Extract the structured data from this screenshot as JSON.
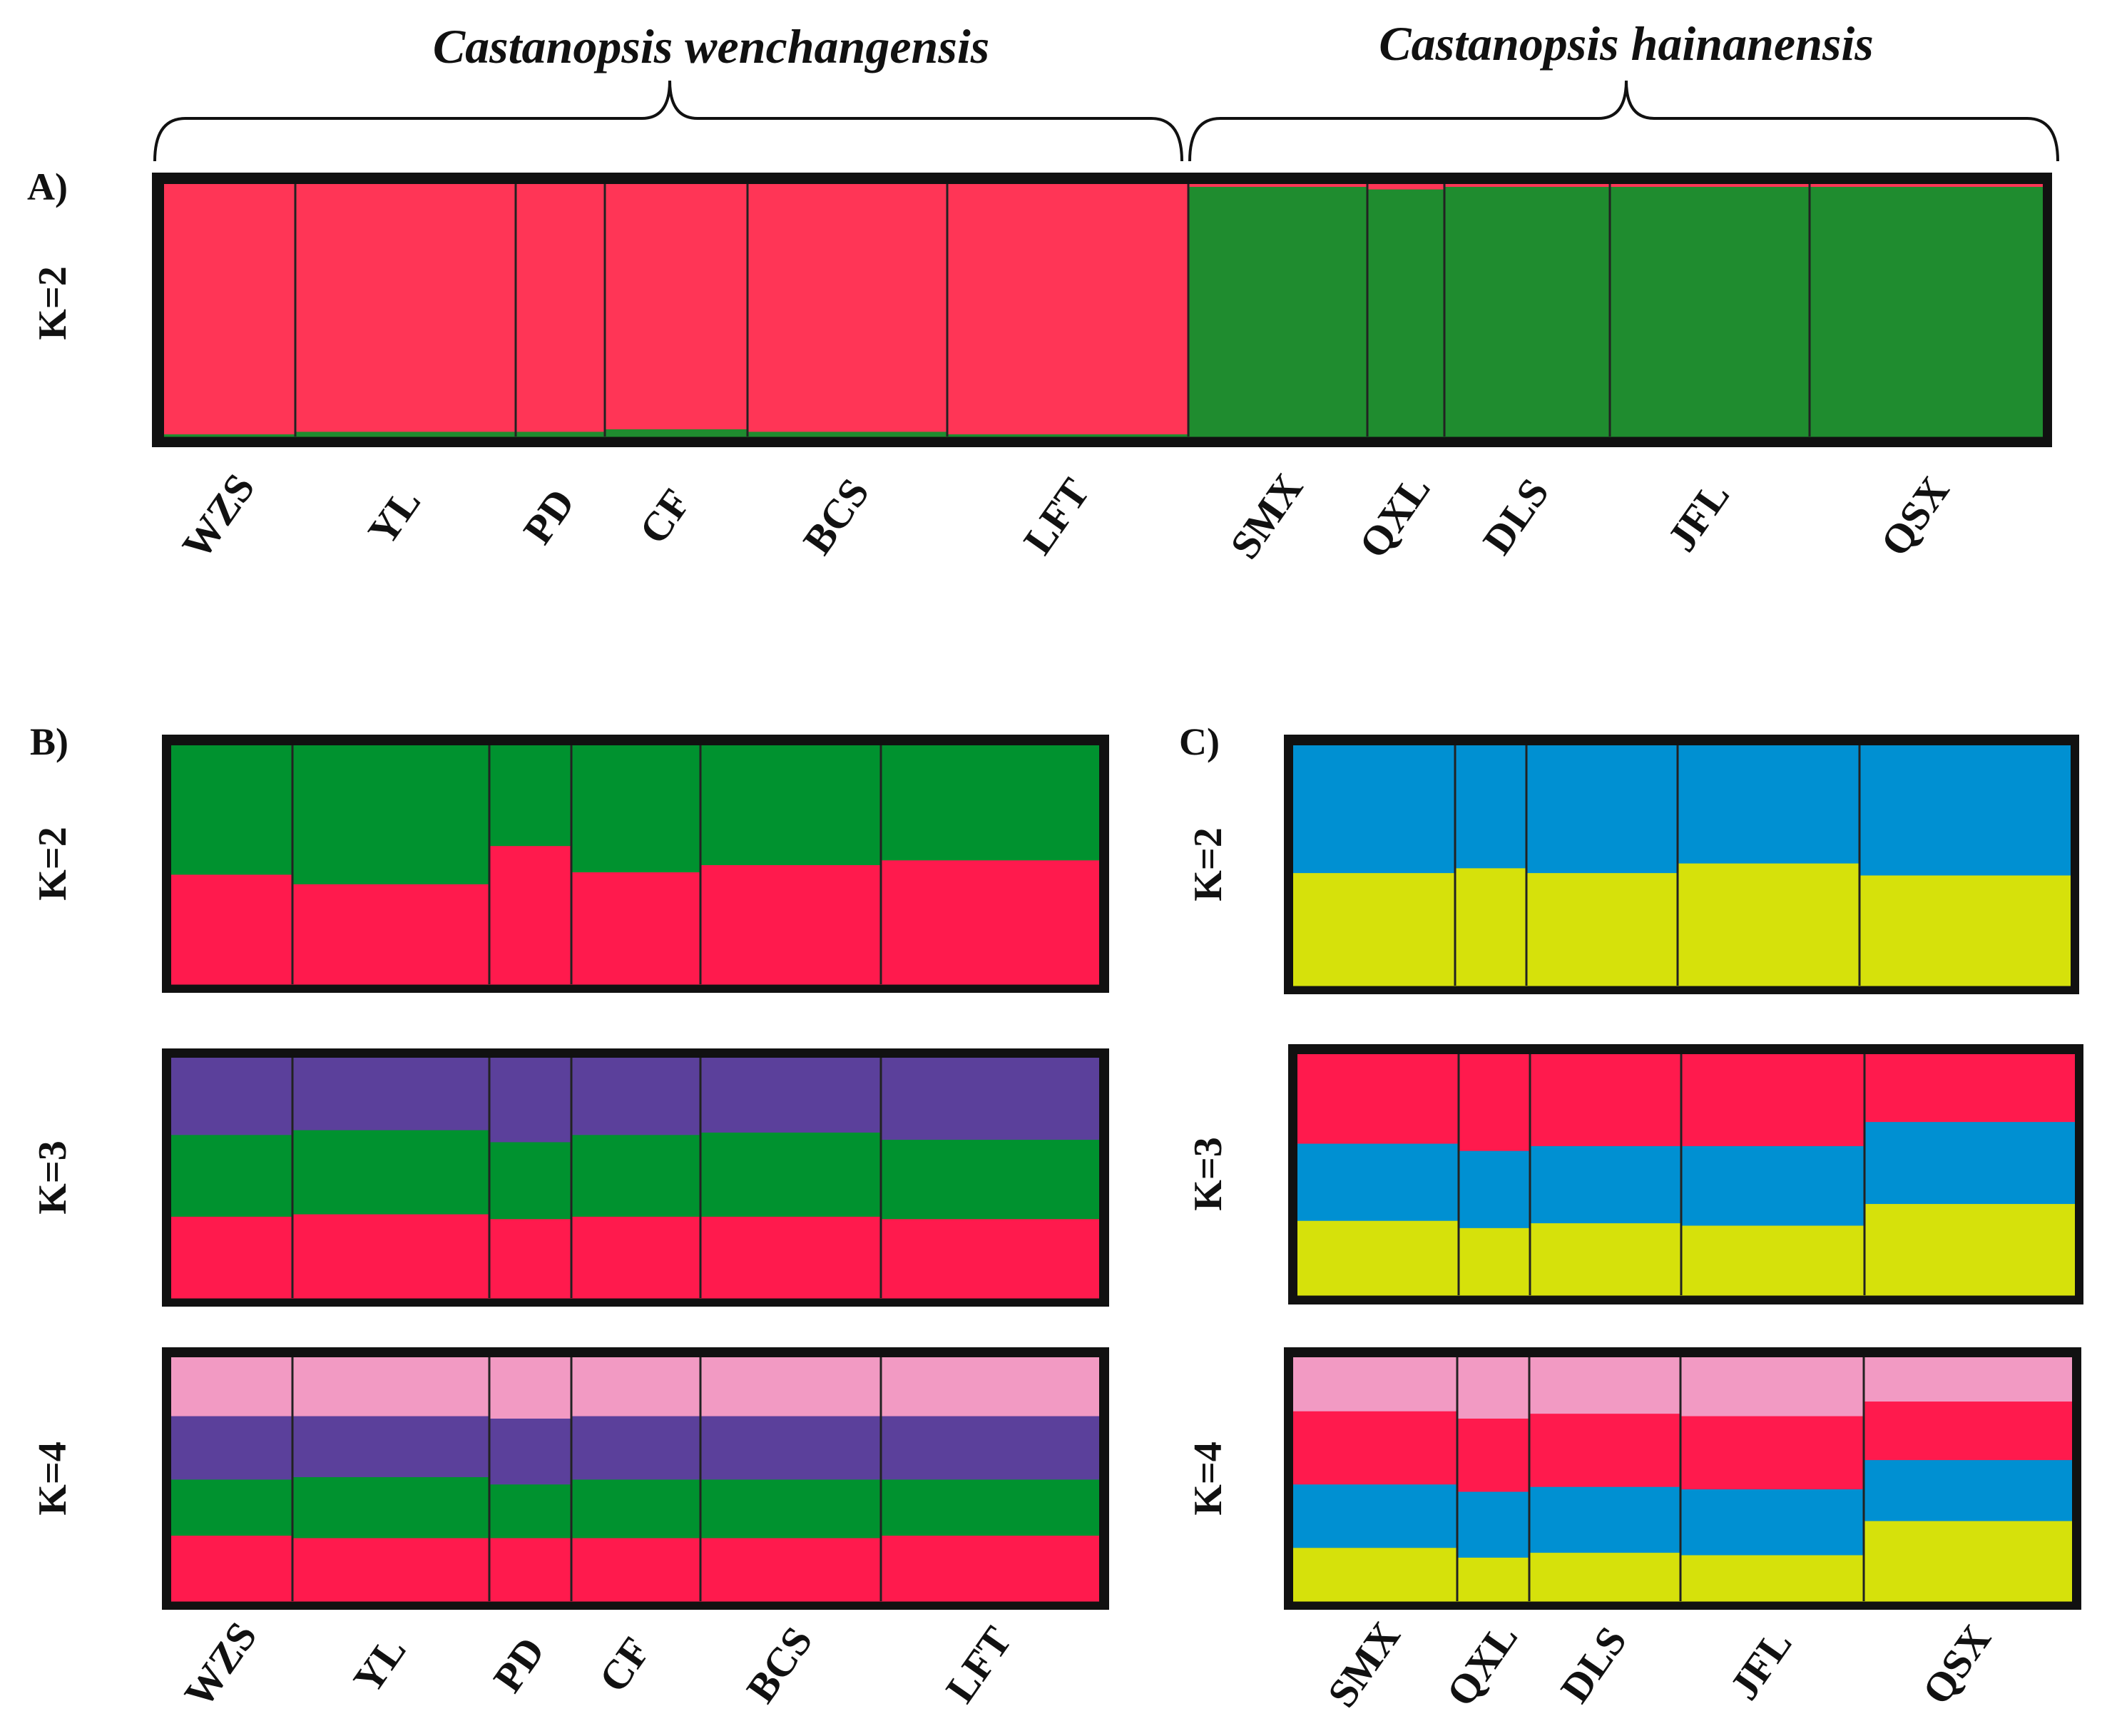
{
  "titles": {
    "left_species": "Castanopsis wenchangensis",
    "right_species": "Castanopsis hainanensis"
  },
  "colors": {
    "red_A": "#ff3556",
    "green_A": "#1f8c2f",
    "red": "#ff1a4d",
    "green": "#00922f",
    "purple": "#5b409b",
    "pink": "#f29ac3",
    "blue": "#0090d2",
    "yellow": "#d6e10b",
    "frame": "#111111"
  },
  "chart_data": [
    {
      "type": "bar",
      "subtype": "stacked-admixture",
      "panel_label": "A)",
      "k_label": "K=2",
      "categories": [
        "WZS",
        "YL",
        "PD",
        "CF",
        "BCS",
        "LFT",
        "SMX",
        "QXL",
        "DLS",
        "JFL",
        "QSX"
      ],
      "ylim": [
        0,
        1
      ],
      "series": [
        {
          "color_key": "green_A",
          "values": [
            0.01,
            0.02,
            0.02,
            0.03,
            0.02,
            0.01,
            0.99,
            0.98,
            0.99,
            0.99,
            0.99
          ]
        },
        {
          "color_key": "red_A",
          "values": [
            0.99,
            0.98,
            0.98,
            0.97,
            0.98,
            0.99,
            0.01,
            0.02,
            0.01,
            0.01,
            0.01
          ]
        }
      ]
    },
    {
      "type": "bar",
      "subtype": "stacked-admixture",
      "panel_label": "B)",
      "k_label": "K=2",
      "categories": [
        "WZS",
        "YL",
        "PD",
        "CF",
        "BCS",
        "LFT"
      ],
      "ylim": [
        0,
        1
      ],
      "series": [
        {
          "color_key": "red",
          "values": [
            0.46,
            0.42,
            0.58,
            0.47,
            0.5,
            0.52
          ]
        },
        {
          "color_key": "green",
          "values": [
            0.54,
            0.58,
            0.42,
            0.53,
            0.5,
            0.48
          ]
        }
      ]
    },
    {
      "type": "bar",
      "subtype": "stacked-admixture",
      "k_label": "K=3",
      "categories": [
        "WZS",
        "YL",
        "PD",
        "CF",
        "BCS",
        "LFT"
      ],
      "ylim": [
        0,
        1
      ],
      "series": [
        {
          "color_key": "red",
          "values": [
            0.34,
            0.35,
            0.33,
            0.34,
            0.34,
            0.33
          ]
        },
        {
          "color_key": "green",
          "values": [
            0.34,
            0.35,
            0.32,
            0.34,
            0.35,
            0.33
          ]
        },
        {
          "color_key": "purple",
          "values": [
            0.32,
            0.3,
            0.35,
            0.32,
            0.31,
            0.34
          ]
        }
      ]
    },
    {
      "type": "bar",
      "subtype": "stacked-admixture",
      "k_label": "K=4",
      "categories": [
        "WZS",
        "YL",
        "PD",
        "CF",
        "BCS",
        "LFT"
      ],
      "ylim": [
        0,
        1
      ],
      "series": [
        {
          "color_key": "red",
          "values": [
            0.27,
            0.26,
            0.26,
            0.26,
            0.26,
            0.27
          ]
        },
        {
          "color_key": "green",
          "values": [
            0.23,
            0.25,
            0.22,
            0.24,
            0.24,
            0.23
          ]
        },
        {
          "color_key": "purple",
          "values": [
            0.26,
            0.25,
            0.27,
            0.26,
            0.26,
            0.26
          ]
        },
        {
          "color_key": "pink",
          "values": [
            0.24,
            0.24,
            0.25,
            0.24,
            0.24,
            0.24
          ]
        }
      ]
    },
    {
      "type": "bar",
      "subtype": "stacked-admixture",
      "panel_label": "C)",
      "k_label": "K=2",
      "categories": [
        "SMX",
        "QXL",
        "DLS",
        "JFL",
        "QSX"
      ],
      "ylim": [
        0,
        1
      ],
      "series": [
        {
          "color_key": "yellow",
          "values": [
            0.47,
            0.49,
            0.47,
            0.51,
            0.46
          ]
        },
        {
          "color_key": "blue",
          "values": [
            0.53,
            0.51,
            0.53,
            0.49,
            0.54
          ]
        }
      ]
    },
    {
      "type": "bar",
      "subtype": "stacked-admixture",
      "k_label": "K=3",
      "categories": [
        "SMX",
        "QXL",
        "DLS",
        "JFL",
        "QSX"
      ],
      "ylim": [
        0,
        1
      ],
      "series": [
        {
          "color_key": "yellow",
          "values": [
            0.31,
            0.28,
            0.3,
            0.29,
            0.38
          ]
        },
        {
          "color_key": "blue",
          "values": [
            0.32,
            0.32,
            0.32,
            0.33,
            0.34
          ]
        },
        {
          "color_key": "red",
          "values": [
            0.37,
            0.4,
            0.38,
            0.38,
            0.28
          ]
        }
      ]
    },
    {
      "type": "bar",
      "subtype": "stacked-admixture",
      "k_label": "K=4",
      "categories": [
        "SMX",
        "QXL",
        "DLS",
        "JFL",
        "QSX"
      ],
      "ylim": [
        0,
        1
      ],
      "series": [
        {
          "color_key": "yellow",
          "values": [
            0.22,
            0.18,
            0.2,
            0.19,
            0.33
          ]
        },
        {
          "color_key": "blue",
          "values": [
            0.26,
            0.27,
            0.27,
            0.27,
            0.25
          ]
        },
        {
          "color_key": "red",
          "values": [
            0.3,
            0.3,
            0.3,
            0.3,
            0.24
          ]
        },
        {
          "color_key": "pink",
          "values": [
            0.22,
            0.25,
            0.23,
            0.24,
            0.18
          ]
        }
      ]
    }
  ]
}
